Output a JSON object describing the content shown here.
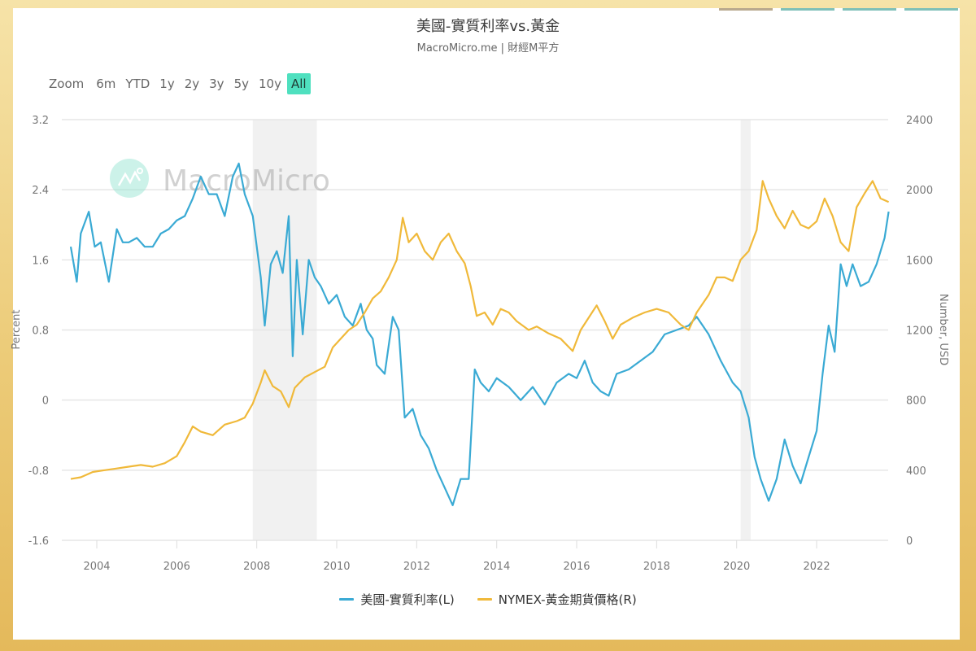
{
  "header": {
    "title": "美國-實質利率vs.黃金",
    "subtitle": "MacroMicro.me | 財經M平方"
  },
  "range_selector": {
    "label": "Zoom",
    "buttons": [
      "6m",
      "YTD",
      "1y",
      "2y",
      "3y",
      "5y",
      "10y",
      "All"
    ],
    "active": "All",
    "active_color": "#4fe0bf"
  },
  "watermark": {
    "text": "MacroMicro"
  },
  "legend": [
    {
      "label": "美國-實質利率(L)",
      "color": "#3aaad4"
    },
    {
      "label": "NYMEX-黃金期貨價格(R)",
      "color": "#f0b93a"
    }
  ],
  "chart_data": {
    "type": "line",
    "title": "美國-實質利率vs.黃金",
    "subtitle": "MacroMicro.me | 財經M平方",
    "xlabel": "",
    "x_ticks": [
      "2004",
      "2006",
      "2008",
      "2010",
      "2012",
      "2014",
      "2016",
      "2018",
      "2020",
      "2022"
    ],
    "y_left": {
      "label": "Percent",
      "ticks": [
        "3.2",
        "2.4",
        "1.6",
        "0.8",
        "0",
        "-0.8",
        "-1.6"
      ],
      "range": [
        -1.6,
        3.2
      ]
    },
    "y_right": {
      "label": "Number, USD",
      "ticks": [
        "2400",
        "2000",
        "1600",
        "1200",
        "800",
        "400",
        "0"
      ],
      "range": [
        0,
        2400
      ]
    },
    "grid": true,
    "legend_position": "bottom",
    "recession_bands": [
      [
        2007.9,
        2009.5
      ],
      [
        2020.1,
        2020.35
      ]
    ],
    "series": [
      {
        "name": "美國-實質利率(L)",
        "axis": "left",
        "color": "#3aaad4",
        "x": [
          2003.35,
          2003.5,
          2003.6,
          2003.8,
          2003.95,
          2004.1,
          2004.3,
          2004.5,
          2004.65,
          2004.8,
          2005.0,
          2005.2,
          2005.4,
          2005.6,
          2005.8,
          2006.0,
          2006.2,
          2006.4,
          2006.6,
          2006.8,
          2007.0,
          2007.2,
          2007.4,
          2007.55,
          2007.7,
          2007.9,
          2008.1,
          2008.2,
          2008.35,
          2008.5,
          2008.65,
          2008.8,
          2008.9,
          2009.0,
          2009.15,
          2009.3,
          2009.45,
          2009.6,
          2009.8,
          2010.0,
          2010.2,
          2010.4,
          2010.6,
          2010.75,
          2010.9,
          2011.0,
          2011.2,
          2011.4,
          2011.55,
          2011.7,
          2011.9,
          2012.1,
          2012.3,
          2012.5,
          2012.7,
          2012.9,
          2013.1,
          2013.3,
          2013.45,
          2013.6,
          2013.8,
          2014.0,
          2014.3,
          2014.6,
          2014.9,
          2015.2,
          2015.5,
          2015.8,
          2016.0,
          2016.2,
          2016.4,
          2016.6,
          2016.8,
          2017.0,
          2017.3,
          2017.6,
          2017.9,
          2018.2,
          2018.5,
          2018.8,
          2019.0,
          2019.3,
          2019.6,
          2019.9,
          2020.1,
          2020.3,
          2020.45,
          2020.6,
          2020.8,
          2021.0,
          2021.2,
          2021.4,
          2021.6,
          2021.8,
          2022.0,
          2022.15,
          2022.3,
          2022.45,
          2022.6,
          2022.75,
          2022.9,
          2023.1,
          2023.3,
          2023.5,
          2023.7,
          2023.8
        ],
        "values": [
          1.75,
          1.35,
          1.9,
          2.15,
          1.75,
          1.8,
          1.35,
          1.95,
          1.8,
          1.8,
          1.85,
          1.75,
          1.75,
          1.9,
          1.95,
          2.05,
          2.1,
          2.3,
          2.55,
          2.35,
          2.35,
          2.1,
          2.55,
          2.7,
          2.35,
          2.1,
          1.4,
          0.85,
          1.55,
          1.7,
          1.45,
          2.1,
          0.5,
          1.6,
          0.75,
          1.6,
          1.4,
          1.3,
          1.1,
          1.2,
          0.95,
          0.85,
          1.1,
          0.8,
          0.7,
          0.4,
          0.3,
          0.95,
          0.8,
          -0.2,
          -0.1,
          -0.4,
          -0.55,
          -0.8,
          -1.0,
          -1.2,
          -0.9,
          -0.9,
          0.35,
          0.2,
          0.1,
          0.25,
          0.15,
          0.0,
          0.15,
          -0.05,
          0.2,
          0.3,
          0.25,
          0.45,
          0.2,
          0.1,
          0.05,
          0.3,
          0.35,
          0.45,
          0.55,
          0.75,
          0.8,
          0.85,
          0.95,
          0.75,
          0.45,
          0.2,
          0.1,
          -0.2,
          -0.65,
          -0.9,
          -1.15,
          -0.9,
          -0.45,
          -0.75,
          -0.95,
          -0.65,
          -0.35,
          0.3,
          0.85,
          0.55,
          1.55,
          1.3,
          1.55,
          1.3,
          1.35,
          1.55,
          1.85,
          2.15
        ]
      },
      {
        "name": "NYMEX-黃金期貨價格(R)",
        "axis": "right",
        "color": "#f0b93a",
        "x": [
          2003.35,
          2003.6,
          2003.9,
          2004.2,
          2004.5,
          2004.8,
          2005.1,
          2005.4,
          2005.7,
          2006.0,
          2006.2,
          2006.4,
          2006.6,
          2006.9,
          2007.2,
          2007.5,
          2007.7,
          2007.9,
          2008.1,
          2008.2,
          2008.4,
          2008.6,
          2008.8,
          2008.95,
          2009.2,
          2009.45,
          2009.7,
          2009.9,
          2010.1,
          2010.3,
          2010.5,
          2010.7,
          2010.9,
          2011.1,
          2011.3,
          2011.5,
          2011.65,
          2011.8,
          2012.0,
          2012.2,
          2012.4,
          2012.6,
          2012.8,
          2013.0,
          2013.2,
          2013.35,
          2013.5,
          2013.7,
          2013.9,
          2014.1,
          2014.3,
          2014.5,
          2014.8,
          2015.0,
          2015.3,
          2015.6,
          2015.9,
          2016.1,
          2016.3,
          2016.5,
          2016.7,
          2016.9,
          2017.1,
          2017.4,
          2017.7,
          2018.0,
          2018.3,
          2018.6,
          2018.8,
          2019.0,
          2019.3,
          2019.5,
          2019.7,
          2019.9,
          2020.1,
          2020.3,
          2020.5,
          2020.65,
          2020.8,
          2021.0,
          2021.2,
          2021.4,
          2021.6,
          2021.8,
          2022.0,
          2022.2,
          2022.4,
          2022.6,
          2022.8,
          2023.0,
          2023.2,
          2023.4,
          2023.6,
          2023.8
        ],
        "values": [
          350,
          360,
          390,
          400,
          410,
          420,
          430,
          420,
          440,
          480,
          560,
          650,
          620,
          600,
          660,
          680,
          700,
          780,
          900,
          970,
          880,
          850,
          760,
          870,
          930,
          960,
          990,
          1100,
          1150,
          1200,
          1230,
          1300,
          1380,
          1420,
          1500,
          1600,
          1840,
          1700,
          1750,
          1650,
          1600,
          1700,
          1750,
          1650,
          1580,
          1450,
          1280,
          1300,
          1230,
          1320,
          1300,
          1250,
          1200,
          1220,
          1180,
          1150,
          1080,
          1200,
          1270,
          1340,
          1250,
          1150,
          1230,
          1270,
          1300,
          1320,
          1300,
          1230,
          1200,
          1300,
          1400,
          1500,
          1500,
          1480,
          1600,
          1650,
          1770,
          2050,
          1950,
          1850,
          1780,
          1880,
          1800,
          1780,
          1820,
          1950,
          1850,
          1700,
          1650,
          1900,
          1980,
          2050,
          1950,
          1930
        ]
      }
    ]
  }
}
